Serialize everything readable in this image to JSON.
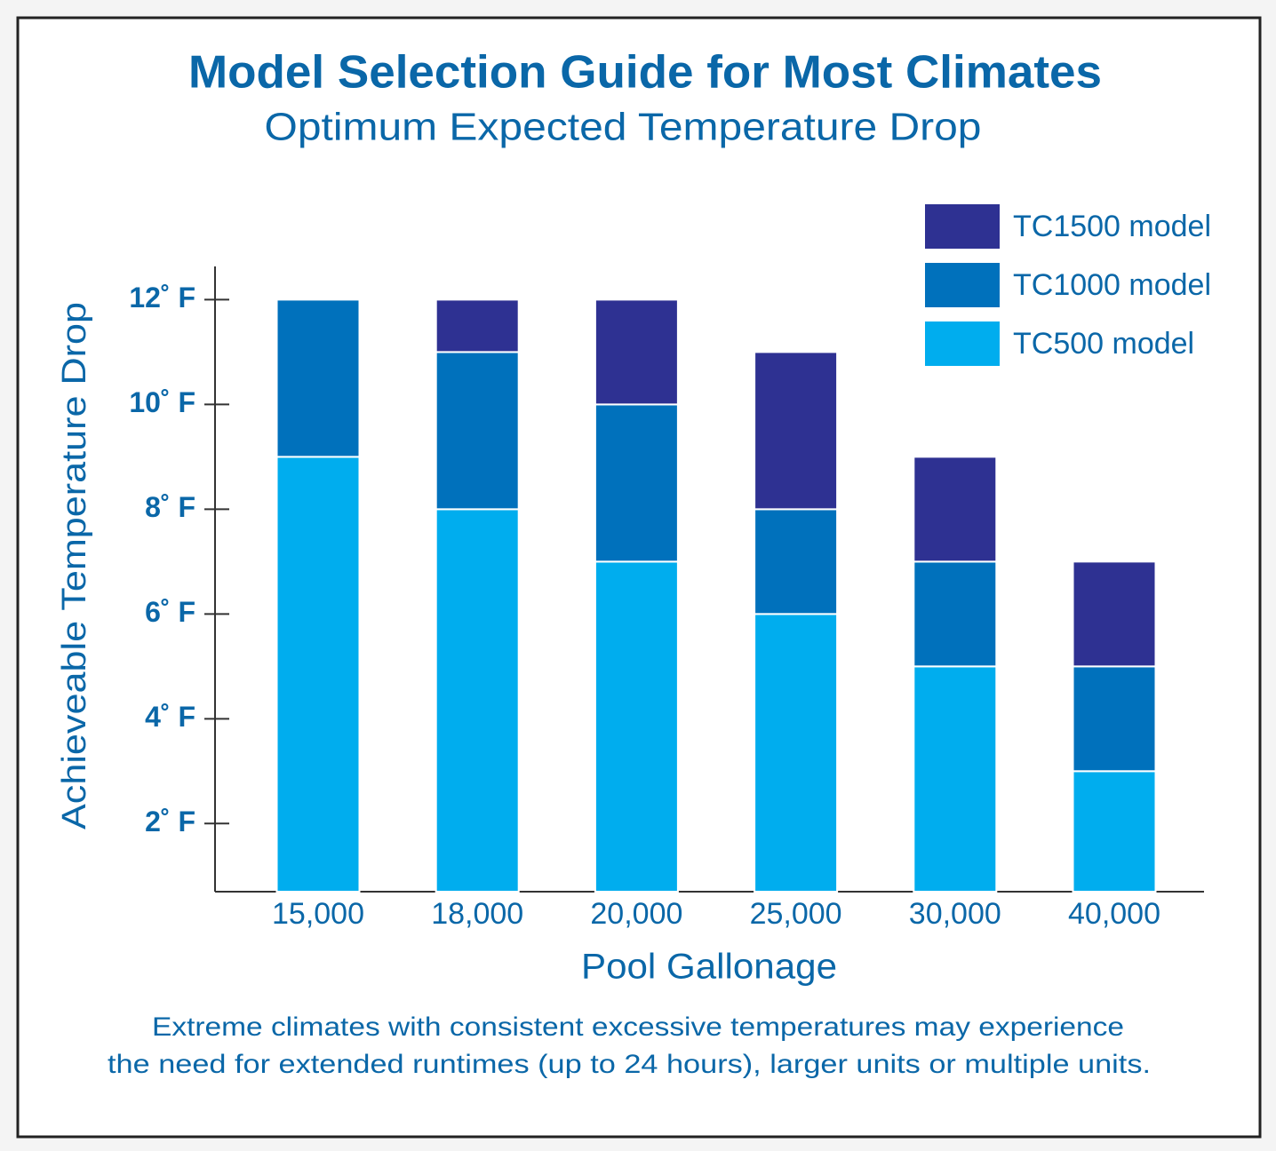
{
  "chart_data": {
    "type": "stacked_bar",
    "title": "Model Selection Guide for Most Climates",
    "subtitle": "Optimum Expected Temperature Drop",
    "x_label": "Pool Gallonage",
    "y_label": "Achieveable Temperature Drop",
    "categories": [
      "15,000",
      "18,000",
      "20,000",
      "25,000",
      "30,000",
      "40,000"
    ],
    "series": [
      {
        "name": "TC500 model",
        "color": "#00adee",
        "values": [
          9,
          8,
          7,
          6,
          5,
          3
        ]
      },
      {
        "name": "TC1000 model",
        "color": "#0071bc",
        "values": [
          3,
          3,
          3,
          2,
          2,
          2
        ]
      },
      {
        "name": "TC1500 model",
        "color": "#2e3192",
        "values": [
          0,
          1,
          2,
          3,
          2,
          2
        ]
      }
    ],
    "ylim": [
      0.7,
      12.6
    ],
    "yticks": [
      {
        "value": 2,
        "label": "2˚ F"
      },
      {
        "value": 4,
        "label": "4˚ F"
      },
      {
        "value": 6,
        "label": "6˚ F"
      },
      {
        "value": 8,
        "label": "8˚ F"
      },
      {
        "value": 10,
        "label": "10˚ F"
      },
      {
        "value": 12,
        "label": "12˚ F"
      }
    ],
    "legend_position": "upper right",
    "footnote": [
      "Extreme climates with consistent excessive temperatures may experience",
      "the need for extended runtimes (up to 24 hours), larger units or multiple units."
    ]
  }
}
